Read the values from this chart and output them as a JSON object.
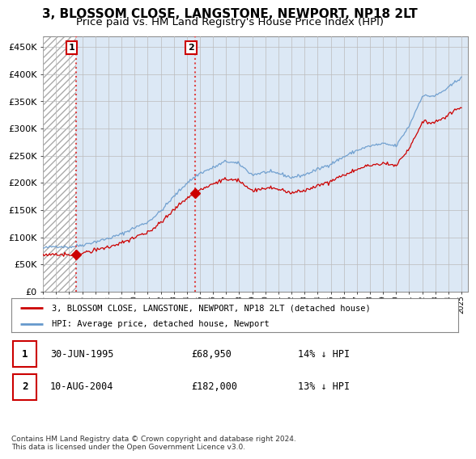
{
  "title": "3, BLOSSOM CLOSE, LANGSTONE, NEWPORT, NP18 2LT",
  "subtitle": "Price paid vs. HM Land Registry's House Price Index (HPI)",
  "title_fontsize": 11,
  "subtitle_fontsize": 9.5,
  "hpi_color": "#6699cc",
  "hpi_fill_color": "#dce8f5",
  "price_color": "#cc0000",
  "marker_color": "#cc0000",
  "sale1_year": 1995.5,
  "sale1_price": 68950,
  "sale2_year": 2004.62,
  "sale2_price": 182000,
  "ylim": [
    0,
    470000
  ],
  "xlim": [
    1993.0,
    2025.5
  ],
  "yticks": [
    0,
    50000,
    100000,
    150000,
    200000,
    250000,
    300000,
    350000,
    400000,
    450000
  ],
  "ytick_labels": [
    "£0",
    "£50K",
    "£100K",
    "£150K",
    "£200K",
    "£250K",
    "£300K",
    "£350K",
    "£400K",
    "£450K"
  ],
  "xtick_years": [
    1993,
    1994,
    1995,
    1996,
    1997,
    1998,
    1999,
    2000,
    2001,
    2002,
    2003,
    2004,
    2005,
    2006,
    2007,
    2008,
    2009,
    2010,
    2011,
    2012,
    2013,
    2014,
    2015,
    2016,
    2017,
    2018,
    2019,
    2020,
    2021,
    2022,
    2023,
    2024,
    2025
  ],
  "legend_label1": "3, BLOSSOM CLOSE, LANGSTONE, NEWPORT, NP18 2LT (detached house)",
  "legend_label2": "HPI: Average price, detached house, Newport",
  "table_row1": [
    "1",
    "30-JUN-1995",
    "£68,950",
    "14% ↓ HPI"
  ],
  "table_row2": [
    "2",
    "10-AUG-2004",
    "£182,000",
    "13% ↓ HPI"
  ],
  "footer": "Contains HM Land Registry data © Crown copyright and database right 2024.\nThis data is licensed under the Open Government Licence v3.0.",
  "hatch_bg": "#f5f5f5",
  "blue_bg": "#dce8f5"
}
